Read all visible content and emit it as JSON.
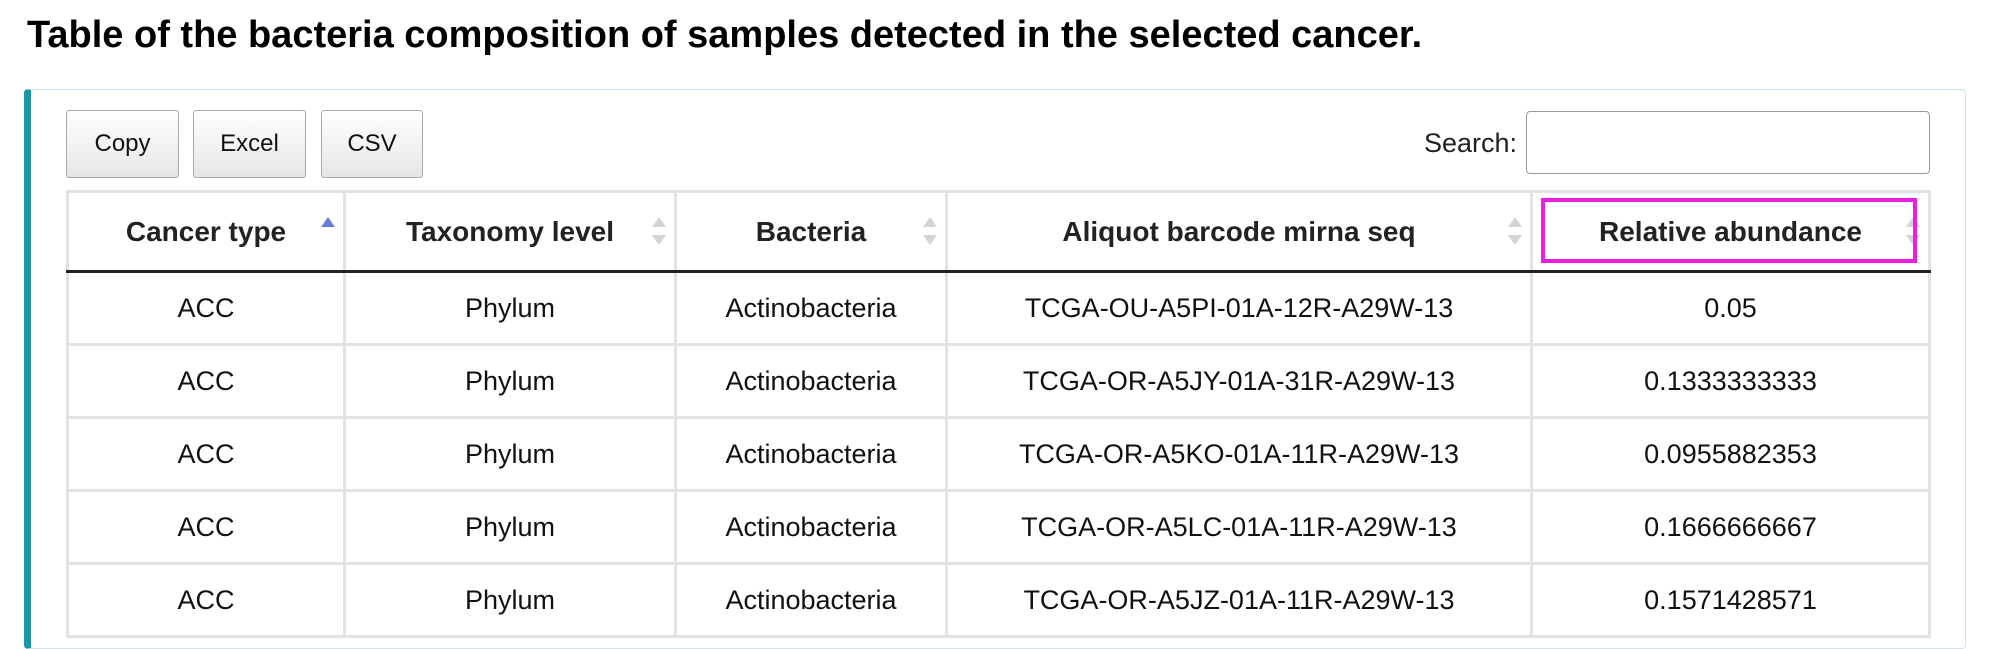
{
  "page": {
    "title": "Table of the bacteria composition of samples detected in the selected cancer."
  },
  "toolbar": {
    "buttons": [
      {
        "label": "Copy"
      },
      {
        "label": "Excel"
      },
      {
        "label": "CSV"
      }
    ]
  },
  "search": {
    "label": "Search:",
    "value": "",
    "placeholder": ""
  },
  "table": {
    "columns": [
      {
        "label": "Cancer type",
        "sort": "ascending"
      },
      {
        "label": "Taxonomy level",
        "sort": "none"
      },
      {
        "label": "Bacteria",
        "sort": "none"
      },
      {
        "label": "Aliquot barcode mirna seq",
        "sort": "none"
      },
      {
        "label": "Relative abundance",
        "sort": "none"
      }
    ],
    "rows": [
      [
        "ACC",
        "Phylum",
        "Actinobacteria",
        "TCGA-OU-A5PI-01A-12R-A29W-13",
        "0.05"
      ],
      [
        "ACC",
        "Phylum",
        "Actinobacteria",
        "TCGA-OR-A5JY-01A-31R-A29W-13",
        "0.1333333333"
      ],
      [
        "ACC",
        "Phylum",
        "Actinobacteria",
        "TCGA-OR-A5KO-01A-11R-A29W-13",
        "0.0955882353"
      ],
      [
        "ACC",
        "Phylum",
        "Actinobacteria",
        "TCGA-OR-A5LC-01A-11R-A29W-13",
        "0.1666666667"
      ],
      [
        "ACC",
        "Phylum",
        "Actinobacteria",
        "TCGA-OR-A5JZ-01A-11R-A29W-13",
        "0.1571428571"
      ]
    ]
  },
  "colors": {
    "panel_accent": "#1b96a6",
    "sort_active": "#6c7fd6",
    "highlight_box": "#ee1ee0"
  }
}
